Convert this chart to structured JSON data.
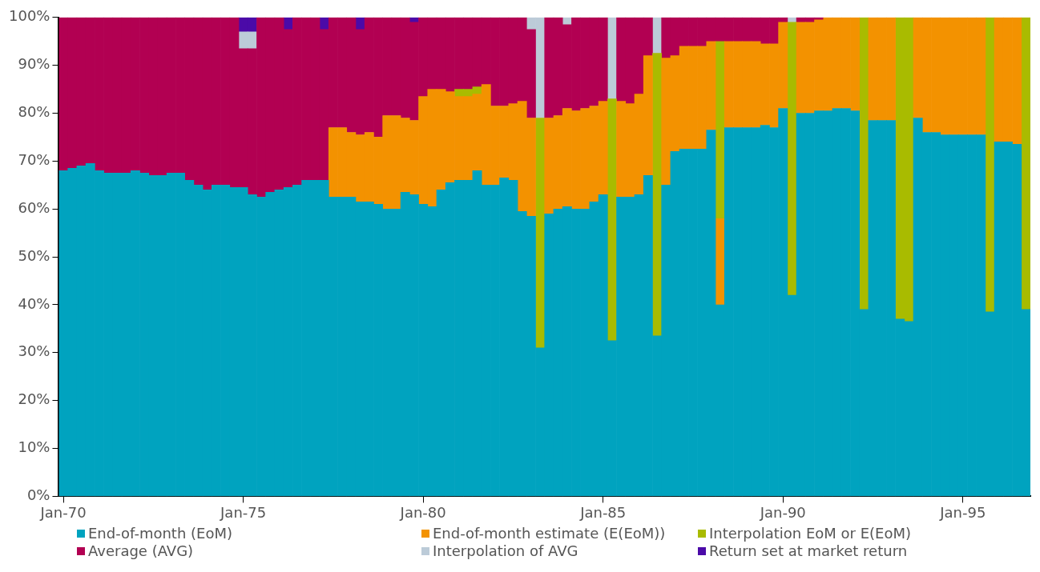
{
  "chart_data": {
    "type": "bar",
    "stacked": true,
    "grid": false,
    "legend": "bottom",
    "categories": [
      "Jan-70",
      null,
      null,
      null,
      null,
      null,
      null,
      null,
      null,
      null,
      null,
      null,
      null,
      null,
      null,
      null,
      null,
      null,
      null,
      null,
      "Jan-75",
      null,
      null,
      null,
      null,
      null,
      null,
      null,
      null,
      null,
      null,
      null,
      null,
      null,
      null,
      null,
      null,
      null,
      null,
      null,
      "Jan-80",
      null,
      null,
      null,
      null,
      null,
      null,
      null,
      null,
      null,
      null,
      null,
      null,
      null,
      null,
      null,
      null,
      null,
      null,
      null,
      "Jan-85",
      null,
      null,
      null,
      null,
      null,
      null,
      null,
      null,
      null,
      null,
      null,
      null,
      null,
      null,
      null,
      null,
      null,
      null,
      null,
      "Jan-90",
      null,
      null,
      null,
      null,
      null,
      null,
      null,
      null,
      null,
      null,
      null,
      null,
      null,
      null,
      null,
      null,
      null,
      null,
      null,
      "Jan-95",
      null,
      null,
      null,
      null,
      null,
      null,
      null
    ],
    "ylim": [
      0,
      100
    ],
    "yticks": [
      {
        "value": 0,
        "label": "0%"
      },
      {
        "value": 10,
        "label": "10%"
      },
      {
        "value": 20,
        "label": "20%"
      },
      {
        "value": 30,
        "label": "30%"
      },
      {
        "value": 40,
        "label": "40%"
      },
      {
        "value": 50,
        "label": "50%"
      },
      {
        "value": 60,
        "label": "60%"
      },
      {
        "value": 70,
        "label": "70%"
      },
      {
        "value": 80,
        "label": "80%"
      },
      {
        "value": 90,
        "label": "90%"
      },
      {
        "value": 100,
        "label": "100%"
      }
    ],
    "series": [
      {
        "name": "End-of-month (EoM)",
        "color": "#00a3bf",
        "values": [
          68,
          68.5,
          69,
          69.5,
          68,
          67.5,
          67.5,
          67.5,
          68,
          67.5,
          67,
          67,
          67.5,
          67.5,
          66,
          65,
          64,
          65,
          65,
          64.5,
          64.5,
          63,
          62.5,
          63.5,
          64,
          64.5,
          65,
          66,
          66,
          66,
          62.5,
          62.5,
          62.5,
          61.5,
          61.5,
          61,
          60,
          60,
          63.5,
          63,
          61,
          60.5,
          64,
          65.5,
          66,
          66,
          68,
          65,
          65,
          66.5,
          66,
          59.5,
          58.5,
          31,
          59,
          60,
          60.5,
          60,
          60,
          61.5,
          63,
          32.5,
          62.5,
          62.5,
          63,
          67,
          33.5,
          65,
          72,
          72.5,
          72.5,
          72.5,
          76.5,
          40,
          77,
          77,
          77,
          77,
          77.5,
          77,
          81,
          42,
          80,
          80,
          80.5,
          80.5,
          81,
          81,
          80.5,
          39,
          78.5,
          78.5,
          78.5,
          37,
          36.5,
          79,
          76,
          76,
          75.5,
          75.5,
          75.5,
          75.5,
          75.5,
          38.5,
          74,
          74,
          73.5,
          39
        ]
      },
      {
        "name": "End-of-month estimate (E(EoM))",
        "color": "#f39200",
        "values": [
          null,
          null,
          null,
          null,
          null,
          null,
          null,
          null,
          null,
          null,
          null,
          null,
          null,
          null,
          null,
          null,
          null,
          null,
          null,
          null,
          null,
          null,
          null,
          null,
          null,
          null,
          null,
          null,
          null,
          null,
          14.5,
          14.5,
          13.5,
          14,
          14.5,
          14,
          19.5,
          19.5,
          15.5,
          15.5,
          22.5,
          24.5,
          21,
          19,
          17.5,
          17.5,
          16,
          21,
          16.5,
          15,
          16,
          23,
          20.5,
          null,
          20,
          19.5,
          20.5,
          20.5,
          21,
          20,
          19.5,
          null,
          20,
          19.5,
          21,
          25,
          null,
          26.5,
          20,
          21.5,
          21.5,
          21.5,
          18.5,
          18,
          18,
          18,
          18,
          18,
          17,
          17.5,
          18,
          null,
          19,
          19,
          19,
          19.5,
          19,
          19,
          19.5,
          null,
          21.5,
          21.5,
          21.5,
          null,
          null,
          21,
          24,
          24,
          24.5,
          24.5,
          24.5,
          24.5,
          24.5,
          null,
          26,
          26,
          26.5,
          null
        ]
      },
      {
        "name": "Interpolation EoM or E(EoM)",
        "color": "#a9bb00",
        "values": [
          null,
          null,
          null,
          null,
          null,
          null,
          null,
          null,
          null,
          null,
          null,
          null,
          null,
          null,
          null,
          null,
          null,
          null,
          null,
          null,
          null,
          null,
          null,
          null,
          null,
          null,
          null,
          null,
          null,
          null,
          null,
          null,
          null,
          null,
          null,
          null,
          null,
          null,
          null,
          null,
          null,
          null,
          null,
          null,
          1.5,
          1.5,
          1.5,
          null,
          null,
          null,
          null,
          null,
          null,
          48,
          null,
          null,
          null,
          null,
          null,
          null,
          null,
          50.5,
          null,
          null,
          null,
          null,
          59,
          null,
          null,
          null,
          null,
          null,
          null,
          37,
          null,
          null,
          null,
          null,
          null,
          null,
          null,
          57,
          null,
          null,
          null,
          null,
          null,
          null,
          null,
          61,
          null,
          null,
          null,
          63,
          63.5,
          null,
          null,
          null,
          null,
          null,
          null,
          null,
          null,
          61.5,
          null,
          null,
          null,
          61
        ]
      },
      {
        "name": "Average (AVG)",
        "color": "#b20052",
        "values": [
          32,
          31.5,
          31,
          30.5,
          32,
          32.5,
          32.5,
          32.5,
          32,
          32.5,
          33,
          33,
          32.5,
          32.5,
          34,
          35,
          36,
          35,
          35,
          35.5,
          29,
          30.5,
          37.5,
          36.5,
          36,
          33,
          35,
          34,
          34,
          31.5,
          23,
          23,
          24,
          22,
          24,
          25,
          20.5,
          20.5,
          21,
          20.5,
          16.5,
          15,
          15,
          15.5,
          15,
          15,
          14.5,
          14,
          18.5,
          18.5,
          18,
          17.5,
          18.5,
          null,
          21,
          20.5,
          17.5,
          19.5,
          19,
          18.5,
          17.5,
          null,
          17.5,
          18,
          16,
          8,
          null,
          8.5,
          8,
          6,
          6,
          6,
          5,
          5,
          5,
          5,
          5,
          5,
          5.5,
          5.5,
          1,
          null,
          1,
          1,
          0.5,
          null,
          null,
          null,
          null,
          null,
          null,
          null,
          null,
          null,
          null,
          null,
          null,
          null,
          null,
          null,
          null,
          null,
          null,
          null,
          null,
          null,
          null,
          null
        ]
      },
      {
        "name": "Interpolation of AVG",
        "color": "#bccbd8",
        "values": [
          null,
          null,
          null,
          null,
          null,
          null,
          null,
          null,
          null,
          null,
          null,
          null,
          null,
          null,
          null,
          null,
          null,
          null,
          null,
          null,
          3.5,
          3.5,
          null,
          null,
          null,
          null,
          null,
          null,
          null,
          null,
          null,
          null,
          null,
          null,
          null,
          null,
          null,
          null,
          null,
          null,
          null,
          null,
          null,
          null,
          null,
          null,
          null,
          null,
          null,
          null,
          null,
          null,
          2.5,
          21,
          null,
          null,
          1.5,
          null,
          null,
          null,
          null,
          17,
          null,
          null,
          null,
          null,
          7.5,
          null,
          null,
          null,
          null,
          null,
          null,
          null,
          null,
          null,
          null,
          null,
          null,
          null,
          null,
          1,
          null,
          null,
          null,
          null,
          null,
          null,
          null,
          null,
          null,
          null,
          null,
          null,
          null,
          null,
          null,
          null,
          null,
          null,
          null,
          null,
          null,
          null,
          null,
          null,
          null,
          null
        ]
      },
      {
        "name": "Return set at market return",
        "color": "#4b0aa8",
        "values": [
          null,
          null,
          null,
          null,
          null,
          null,
          null,
          null,
          null,
          null,
          null,
          null,
          null,
          null,
          null,
          null,
          null,
          null,
          null,
          null,
          3,
          3,
          null,
          null,
          null,
          2.5,
          null,
          null,
          null,
          2.5,
          null,
          null,
          null,
          2.5,
          null,
          null,
          null,
          null,
          null,
          1,
          null,
          null,
          null,
          null,
          null,
          null,
          null,
          null,
          null,
          null,
          null,
          null,
          null,
          null,
          null,
          null,
          null,
          null,
          null,
          null,
          null,
          null,
          null,
          null,
          null,
          null,
          null,
          null,
          null,
          null,
          null,
          null,
          null,
          null,
          null,
          null,
          null,
          null,
          null,
          null,
          null,
          null,
          null,
          null,
          null,
          null,
          null,
          null,
          null,
          null,
          null,
          null,
          null,
          null,
          null,
          null,
          null,
          null,
          null,
          null,
          null,
          null,
          null,
          null,
          null,
          null,
          null,
          null
        ]
      }
    ]
  }
}
